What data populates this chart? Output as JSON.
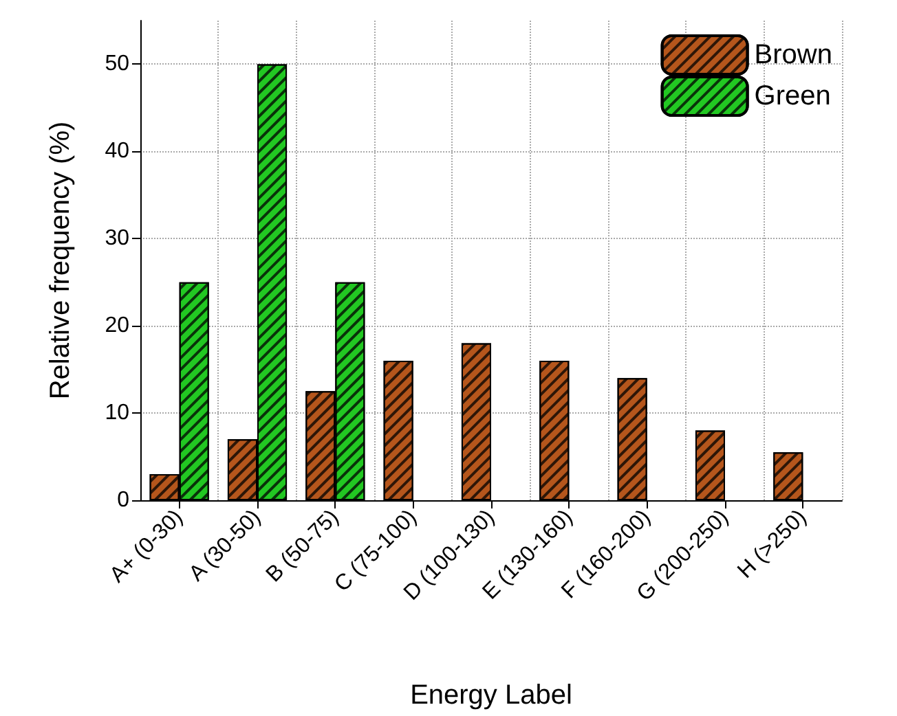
{
  "chart_data": {
    "type": "bar",
    "xlabel": "Energy Label",
    "ylabel": "Relative frequency (%)",
    "categories": [
      "A+ (0-30)",
      "A (30-50)",
      "B (50-75)",
      "C (75-100)",
      "D (100-130)",
      "E (130-160)",
      "F (160-200)",
      "G (200-250)",
      "H (>250)"
    ],
    "series": [
      {
        "name": "Brown",
        "color": "#b5561c",
        "values": [
          3,
          7,
          12.5,
          16,
          18,
          16,
          14,
          8,
          5.5
        ]
      },
      {
        "name": "Green",
        "color": "#22c822",
        "values": [
          25,
          50,
          25,
          null,
          null,
          null,
          null,
          null,
          null
        ]
      }
    ],
    "ylim": [
      0,
      55
    ],
    "yticks": [
      0,
      10,
      20,
      30,
      40,
      50
    ],
    "grid": true,
    "legend": "top right"
  }
}
